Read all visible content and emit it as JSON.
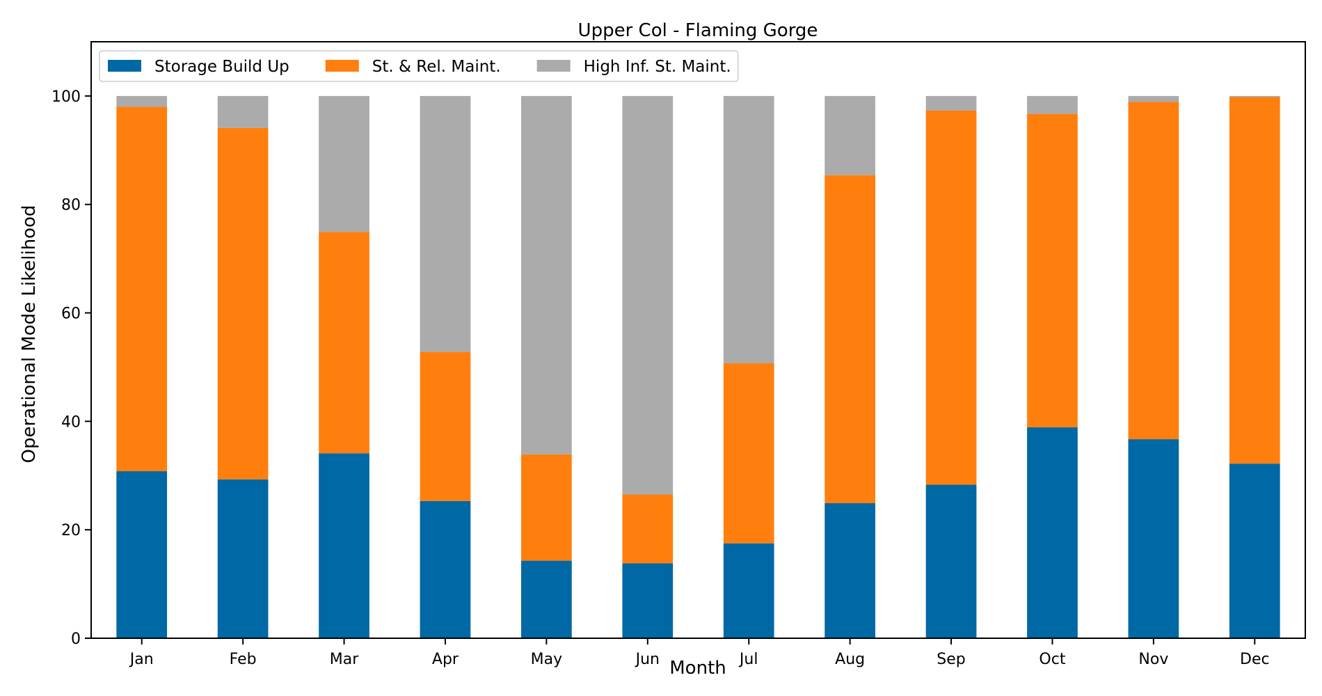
{
  "chart_data": {
    "type": "bar",
    "stacked": true,
    "title": "Upper Col - Flaming Gorge",
    "xlabel": "Month",
    "ylabel": "Operational Mode Likelihood",
    "ylim": [
      0,
      110
    ],
    "yticks": [
      0,
      20,
      40,
      60,
      80,
      100
    ],
    "grid": false,
    "legend_position": "top-left",
    "categories": [
      "Jan",
      "Feb",
      "Mar",
      "Apr",
      "May",
      "Jun",
      "Jul",
      "Aug",
      "Sep",
      "Oct",
      "Nov",
      "Dec"
    ],
    "series": [
      {
        "name": "Storage Build Up",
        "color": "#0068a5",
        "values": [
          30.8,
          29.3,
          34.1,
          25.3,
          14.3,
          13.8,
          17.5,
          24.9,
          28.3,
          38.9,
          36.7,
          32.2
        ]
      },
      {
        "name": "St. & Rel. Maint.",
        "color": "#ff7f0e",
        "values": [
          67.2,
          64.8,
          40.8,
          27.5,
          19.6,
          12.7,
          33.2,
          60.5,
          69.0,
          57.8,
          62.2,
          67.6
        ]
      },
      {
        "name": "High Inf. St. Maint.",
        "color": "#ababab",
        "values": [
          2.0,
          5.9,
          25.1,
          47.2,
          66.1,
          73.5,
          49.3,
          14.6,
          2.7,
          3.3,
          1.1,
          0.2
        ]
      }
    ]
  }
}
